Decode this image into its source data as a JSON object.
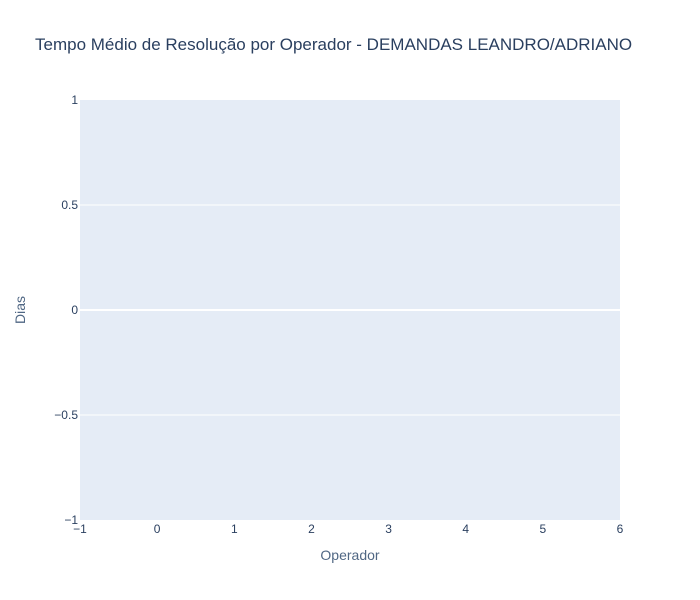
{
  "chart_data": {
    "type": "line",
    "title": "Tempo Médio de Resolução por Operador - DEMANDAS LEANDRO/ADRIANO",
    "xlabel": "Operador",
    "ylabel": "Dias",
    "xlim": [
      -1,
      6
    ],
    "ylim": [
      -1,
      1
    ],
    "x_ticks": [
      -1,
      0,
      1,
      2,
      3,
      4,
      5,
      6
    ],
    "x_tick_labels": [
      "−1",
      "0",
      "1",
      "2",
      "3",
      "4",
      "5",
      "6"
    ],
    "y_ticks": [
      -1,
      -0.5,
      0,
      0.5,
      1
    ],
    "y_tick_labels": [
      "−1",
      "−0.5",
      "0",
      "0.5",
      "1"
    ],
    "series": [],
    "grid": true,
    "colors": {
      "plot_bg": "#e5ecf6",
      "grid": "#ffffff",
      "text": "#2a3f5f"
    }
  }
}
